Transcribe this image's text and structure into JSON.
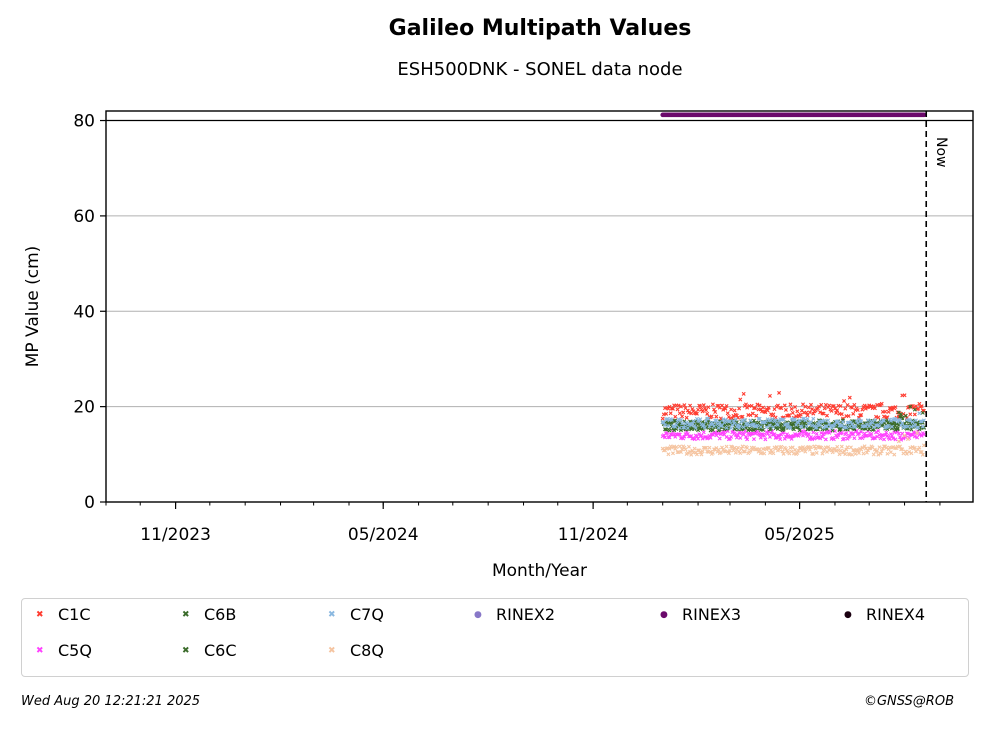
{
  "chart_data": {
    "type": "scatter",
    "title": "Galileo Multipath Values",
    "subtitle": "ESH500DNK - SONEL data node",
    "xlabel": "Month/Year",
    "ylabel": "MP Value (cm)",
    "x_ticks": [
      "11/2023",
      "05/2024",
      "11/2024",
      "05/2025"
    ],
    "y_ticks": [
      0,
      20,
      40,
      60,
      80
    ],
    "ylim": [
      0,
      82
    ],
    "xlim": [
      "2023-09-01",
      "2025-09-30"
    ],
    "grid": "y",
    "now_label": "Now",
    "now_date": "2025-08-20",
    "series_x_range": [
      "2025-01-01",
      "2025-08-18"
    ],
    "series": [
      {
        "name": "C1C",
        "color": "#ff3b2f",
        "marker": "x",
        "mean": 19.0,
        "spread": 1.5
      },
      {
        "name": "C5Q",
        "color": "#ff40ff",
        "marker": "x",
        "mean": 14.0,
        "spread": 0.9
      },
      {
        "name": "C6B",
        "color": "#3a6b2a",
        "marker": "x",
        "mean": 16.2,
        "spread": 1.0
      },
      {
        "name": "C6C",
        "color": "#3a6b2a",
        "marker": "x",
        "mean": 16.0,
        "spread": 1.0
      },
      {
        "name": "C7Q",
        "color": "#8ab8e0",
        "marker": "x",
        "mean": 16.5,
        "spread": 1.0
      },
      {
        "name": "C8Q",
        "color": "#f5c4a0",
        "marker": "x",
        "mean": 10.8,
        "spread": 0.9
      },
      {
        "name": "RINEX2",
        "color": "#8878c8",
        "marker": "o"
      },
      {
        "name": "RINEX3",
        "color": "#6b0a6b",
        "marker": "o",
        "value": 81.2
      },
      {
        "name": "RINEX4",
        "color": "#1a0010",
        "marker": "o"
      }
    ]
  },
  "legend": {
    "items": [
      {
        "label": "C1C",
        "color": "#ff3b2f",
        "marker": "x"
      },
      {
        "label": "C6B",
        "color": "#3a6b2a",
        "marker": "x"
      },
      {
        "label": "C7Q",
        "color": "#8ab8e0",
        "marker": "x"
      },
      {
        "label": "RINEX2",
        "color": "#8878c8",
        "marker": "●"
      },
      {
        "label": "RINEX3",
        "color": "#6b0a6b",
        "marker": "●"
      },
      {
        "label": "RINEX4",
        "color": "#1a0010",
        "marker": "●"
      },
      {
        "label": "C5Q",
        "color": "#ff40ff",
        "marker": "x"
      },
      {
        "label": "C6C",
        "color": "#3a6b2a",
        "marker": "x"
      },
      {
        "label": "C8Q",
        "color": "#f5c4a0",
        "marker": "x"
      }
    ]
  },
  "footer": {
    "timestamp": "Wed Aug 20 12:21:21 2025",
    "credit": "©GNSS@ROB"
  }
}
